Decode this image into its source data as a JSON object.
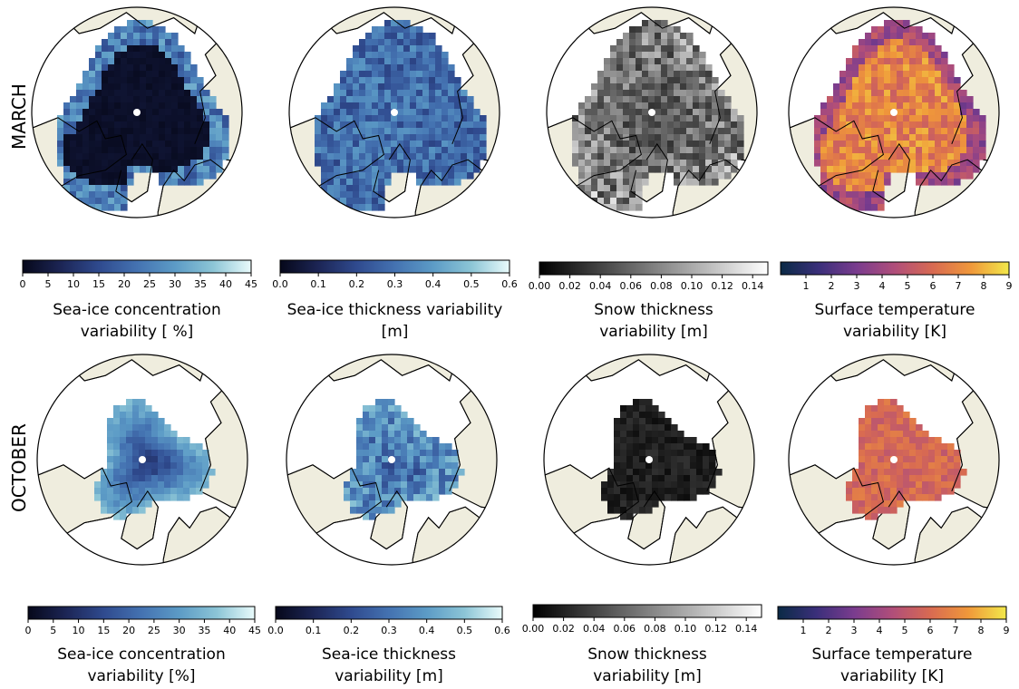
{
  "rows": [
    {
      "label": "MARCH",
      "month": "march"
    },
    {
      "label": "OCTOBER",
      "month": "october"
    }
  ],
  "colors": {
    "land": "#efedde",
    "ocean": "#ffffff",
    "coast": "#000000",
    "ice": "#4a6fb0",
    "thickness": "#3c5fa6",
    "snow": "#3a3a3a",
    "temp": "#e8883a"
  },
  "chart_data": [
    {
      "type": "heatmap",
      "row": "MARCH",
      "variable": "sea_ice_concentration",
      "cmap": "ice",
      "vmin": 0,
      "vmax": 45,
      "ticks": [
        "0",
        "5",
        "10",
        "15",
        "20",
        "25",
        "30",
        "35",
        "40",
        "45"
      ],
      "tick_values": [
        0,
        5,
        10,
        15,
        20,
        25,
        30,
        35,
        40,
        45
      ],
      "label_lines": [
        "Sea-ice concentration",
        "variability [ %]"
      ]
    },
    {
      "type": "heatmap",
      "row": "MARCH",
      "variable": "sea_ice_thickness",
      "cmap": "ice",
      "vmin": 0,
      "vmax": 0.6,
      "ticks": [
        "0.0",
        "0.1",
        "0.2",
        "0.3",
        "0.4",
        "0.5",
        "0.6"
      ],
      "tick_values": [
        0,
        0.1,
        0.2,
        0.3,
        0.4,
        0.5,
        0.6
      ],
      "label_lines": [
        "Sea-ice thickness variability",
        "[m]"
      ]
    },
    {
      "type": "heatmap",
      "row": "MARCH",
      "variable": "snow_thickness",
      "cmap": "gray",
      "vmin": 0,
      "vmax": 0.15,
      "ticks": [
        "0.00",
        "0.02",
        "0.04",
        "0.06",
        "0.08",
        "0.10",
        "0.12",
        "0.14"
      ],
      "tick_values": [
        0,
        0.02,
        0.04,
        0.06,
        0.08,
        0.1,
        0.12,
        0.14
      ],
      "label_lines": [
        "Snow thickness",
        "variability [m]"
      ]
    },
    {
      "type": "heatmap",
      "row": "MARCH",
      "variable": "surface_temperature",
      "cmap": "thermal",
      "vmin": 0,
      "vmax": 9,
      "ticks": [
        "1",
        "2",
        "3",
        "4",
        "5",
        "6",
        "7",
        "8",
        "9"
      ],
      "tick_values": [
        1,
        2,
        3,
        4,
        5,
        6,
        7,
        8,
        9
      ],
      "label_lines": [
        "Surface temperature",
        "variability [K]"
      ]
    },
    {
      "type": "heatmap",
      "row": "OCTOBER",
      "variable": "sea_ice_concentration",
      "cmap": "ice",
      "vmin": 0,
      "vmax": 45,
      "ticks": [
        "0",
        "5",
        "10",
        "15",
        "20",
        "25",
        "30",
        "35",
        "40",
        "45"
      ],
      "tick_values": [
        0,
        5,
        10,
        15,
        20,
        25,
        30,
        35,
        40,
        45
      ],
      "label_lines": [
        "Sea-ice concentration",
        "variability [%]"
      ]
    },
    {
      "type": "heatmap",
      "row": "OCTOBER",
      "variable": "sea_ice_thickness",
      "cmap": "ice",
      "vmin": 0,
      "vmax": 0.6,
      "ticks": [
        "0.0",
        "0.1",
        "0.2",
        "0.3",
        "0.4",
        "0.5",
        "0.6"
      ],
      "tick_values": [
        0,
        0.1,
        0.2,
        0.3,
        0.4,
        0.5,
        0.6
      ],
      "label_lines": [
        "Sea-ice thickness",
        "variability [m]"
      ]
    },
    {
      "type": "heatmap",
      "row": "OCTOBER",
      "variable": "snow_thickness",
      "cmap": "gray",
      "vmin": 0,
      "vmax": 0.15,
      "ticks": [
        "0.00",
        "0.02",
        "0.04",
        "0.06",
        "0.08",
        "0.10",
        "0.12",
        "0.14"
      ],
      "tick_values": [
        0,
        0.02,
        0.04,
        0.06,
        0.08,
        0.1,
        0.12,
        0.14
      ],
      "label_lines": [
        "Snow thickness",
        "variability [m]"
      ]
    },
    {
      "type": "heatmap",
      "row": "OCTOBER",
      "variable": "surface_temperature",
      "cmap": "thermal",
      "vmin": 0,
      "vmax": 9,
      "ticks": [
        "1",
        "2",
        "3",
        "4",
        "5",
        "6",
        "7",
        "8",
        "9"
      ],
      "tick_values": [
        1,
        2,
        3,
        4,
        5,
        6,
        7,
        8,
        9
      ],
      "label_lines": [
        "Surface temperature",
        "variability [K]"
      ]
    }
  ]
}
